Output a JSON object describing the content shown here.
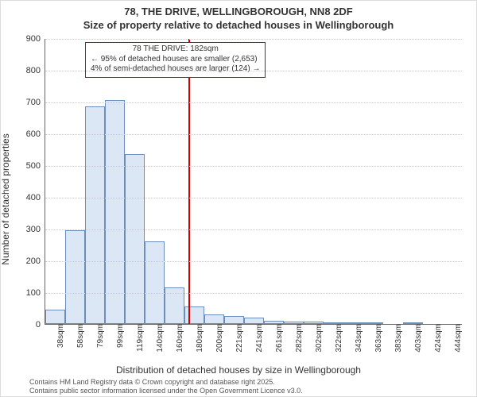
{
  "title": {
    "line1": "78, THE DRIVE, WELLINGBOROUGH, NN8 2DF",
    "line2": "Size of property relative to detached houses in Wellingborough",
    "fontsize": 13,
    "fontweight": "bold"
  },
  "axes": {
    "ylabel": "Number of detached properties",
    "xlabel": "Distribution of detached houses by size in Wellingborough",
    "label_fontsize": 12,
    "ylim": [
      0,
      900
    ],
    "ytick_step": 100,
    "tick_fontsize": 11,
    "xtick_fontsize": 10,
    "grid_color": "#cccccc",
    "axis_color": "#666666"
  },
  "chart": {
    "type": "histogram",
    "bar_fill": "#dbe7f5",
    "bar_border": "#6c8ebf",
    "background": "#ffffff",
    "x_categories": [
      "38sqm",
      "58sqm",
      "79sqm",
      "99sqm",
      "119sqm",
      "140sqm",
      "160sqm",
      "180sqm",
      "200sqm",
      "221sqm",
      "241sqm",
      "261sqm",
      "282sqm",
      "302sqm",
      "322sqm",
      "343sqm",
      "363sqm",
      "383sqm",
      "403sqm",
      "424sqm",
      "444sqm"
    ],
    "values": [
      45,
      295,
      685,
      705,
      535,
      260,
      115,
      55,
      30,
      25,
      20,
      10,
      8,
      8,
      6,
      5,
      4,
      0,
      4,
      0,
      0
    ]
  },
  "marker": {
    "label": "78 THE DRIVE: 182sqm",
    "smaller_text": "← 95% of detached houses are smaller (2,653)",
    "larger_text": "4% of semi-detached houses are larger (124) →",
    "position_index": 7.2,
    "line_color": "#d40000",
    "box_border": "#d40000"
  },
  "footnote": {
    "line1": "Contains HM Land Registry data © Crown copyright and database right 2025.",
    "line2": "Contains public sector information licensed under the Open Government Licence v3.0.",
    "fontsize": 9,
    "color": "#555555"
  }
}
